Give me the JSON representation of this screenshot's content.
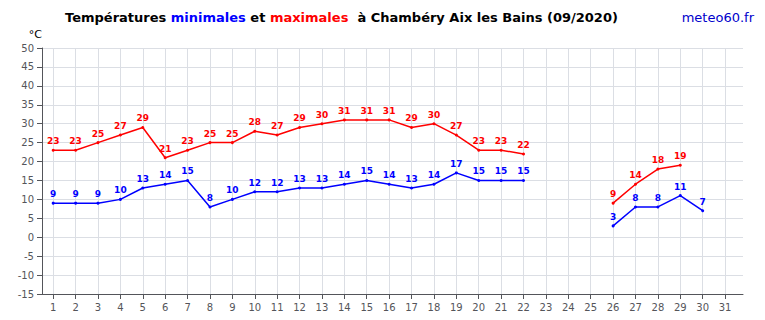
{
  "chart_data": {
    "type": "line",
    "title": "Températures minimales et maximales  à Chambéry Aix les Bains (09/2020)",
    "ylabel": "°C",
    "annotations": [
      "meteo60.fr"
    ],
    "x": [
      1,
      2,
      3,
      4,
      5,
      6,
      7,
      8,
      9,
      10,
      11,
      12,
      13,
      14,
      15,
      16,
      17,
      18,
      19,
      20,
      21,
      22,
      23,
      24,
      25,
      26,
      27,
      28,
      29,
      30,
      31
    ],
    "series": [
      {
        "name": "minimales",
        "color": "#0000ff",
        "values": [
          9,
          9,
          9,
          10,
          13,
          14,
          15,
          8,
          10,
          12,
          12,
          13,
          13,
          14,
          15,
          14,
          13,
          14,
          17,
          15,
          15,
          15,
          null,
          null,
          null,
          3,
          8,
          8,
          11,
          7,
          null
        ]
      },
      {
        "name": "maximales",
        "color": "#ff0000",
        "values": [
          23,
          23,
          25,
          27,
          29,
          21,
          23,
          25,
          25,
          28,
          27,
          29,
          30,
          31,
          31,
          31,
          29,
          30,
          27,
          23,
          23,
          22,
          null,
          null,
          null,
          9,
          14,
          18,
          19,
          null,
          null
        ]
      }
    ],
    "xlim": [
      0.5,
      31.8
    ],
    "xticks": [
      1,
      2,
      3,
      4,
      5,
      6,
      7,
      8,
      9,
      10,
      11,
      12,
      13,
      14,
      15,
      16,
      17,
      18,
      19,
      20,
      21,
      22,
      23,
      24,
      25,
      26,
      27,
      28,
      29,
      30,
      31
    ],
    "ylim": [
      -15,
      50
    ],
    "yticks": [
      -15,
      -10,
      -5,
      0,
      5,
      10,
      15,
      20,
      25,
      30,
      35,
      40,
      45,
      50
    ],
    "grid": true,
    "data_labels": true
  }
}
